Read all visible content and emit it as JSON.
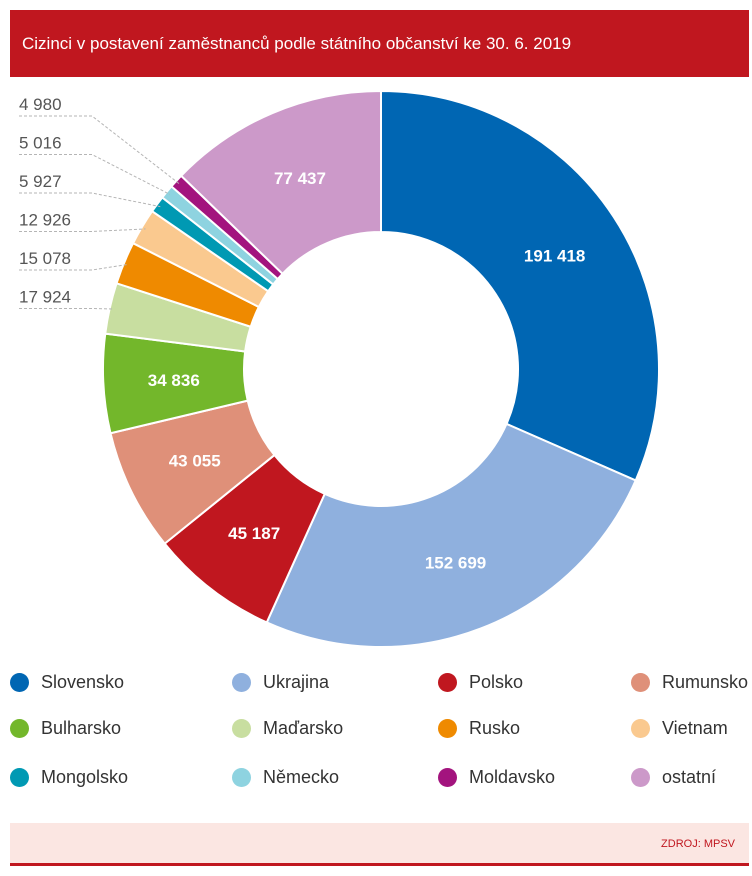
{
  "title": "Cizinci v postavení zaměstnanců podle státního občanství ke 30. 6. 2019",
  "source": "ZDROJ: MPSV",
  "chart_data": {
    "type": "pie",
    "title": "Cizinci v postavení zaměstnanců podle státního občanství ke 30. 6. 2019",
    "donut": true,
    "legend_position": "bottom",
    "slices": [
      {
        "name": "Slovensko",
        "value": 191418,
        "label": "191 418",
        "color": "#0066b3"
      },
      {
        "name": "Ukrajina",
        "value": 152699,
        "label": "152 699",
        "color": "#8fb0de"
      },
      {
        "name": "Polsko",
        "value": 45187,
        "label": "45 187",
        "color": "#c0171f"
      },
      {
        "name": "Rumunsko",
        "value": 43055,
        "label": "43 055",
        "color": "#df9079"
      },
      {
        "name": "Bulharsko",
        "value": 34836,
        "label": "34 836",
        "color": "#73b72b"
      },
      {
        "name": "Maďarsko",
        "value": 17924,
        "label": "17 924",
        "color": "#c8dea0"
      },
      {
        "name": "Rusko",
        "value": 15078,
        "label": "15 078",
        "color": "#ef8a00"
      },
      {
        "name": "Vietnam",
        "value": 12926,
        "label": "12 926",
        "color": "#fac98f"
      },
      {
        "name": "Mongolsko",
        "value": 5927,
        "label": "5 927",
        "color": "#0099b3"
      },
      {
        "name": "Německo",
        "value": 5016,
        "label": "5 016",
        "color": "#8ed3e0"
      },
      {
        "name": "Moldavsko",
        "value": 4980,
        "label": "4 980",
        "color": "#a3147e"
      },
      {
        "name": "ostatní",
        "value": 77437,
        "label": "77 437",
        "color": "#cc99c9"
      }
    ]
  }
}
